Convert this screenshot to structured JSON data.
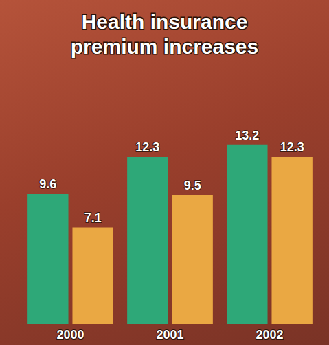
{
  "chart_data": {
    "type": "bar",
    "title": "Health insurance premium increases",
    "categories": [
      "2000",
      "2001",
      "2002"
    ],
    "series": [
      {
        "color": "#2ea878",
        "values": [
          9.6,
          12.3,
          13.2
        ]
      },
      {
        "color": "#eaa843",
        "values": [
          7.1,
          9.5,
          12.3
        ]
      }
    ],
    "ylim": [
      0,
      15
    ],
    "grid": false,
    "data_labels": true,
    "tick_labels": "x"
  }
}
